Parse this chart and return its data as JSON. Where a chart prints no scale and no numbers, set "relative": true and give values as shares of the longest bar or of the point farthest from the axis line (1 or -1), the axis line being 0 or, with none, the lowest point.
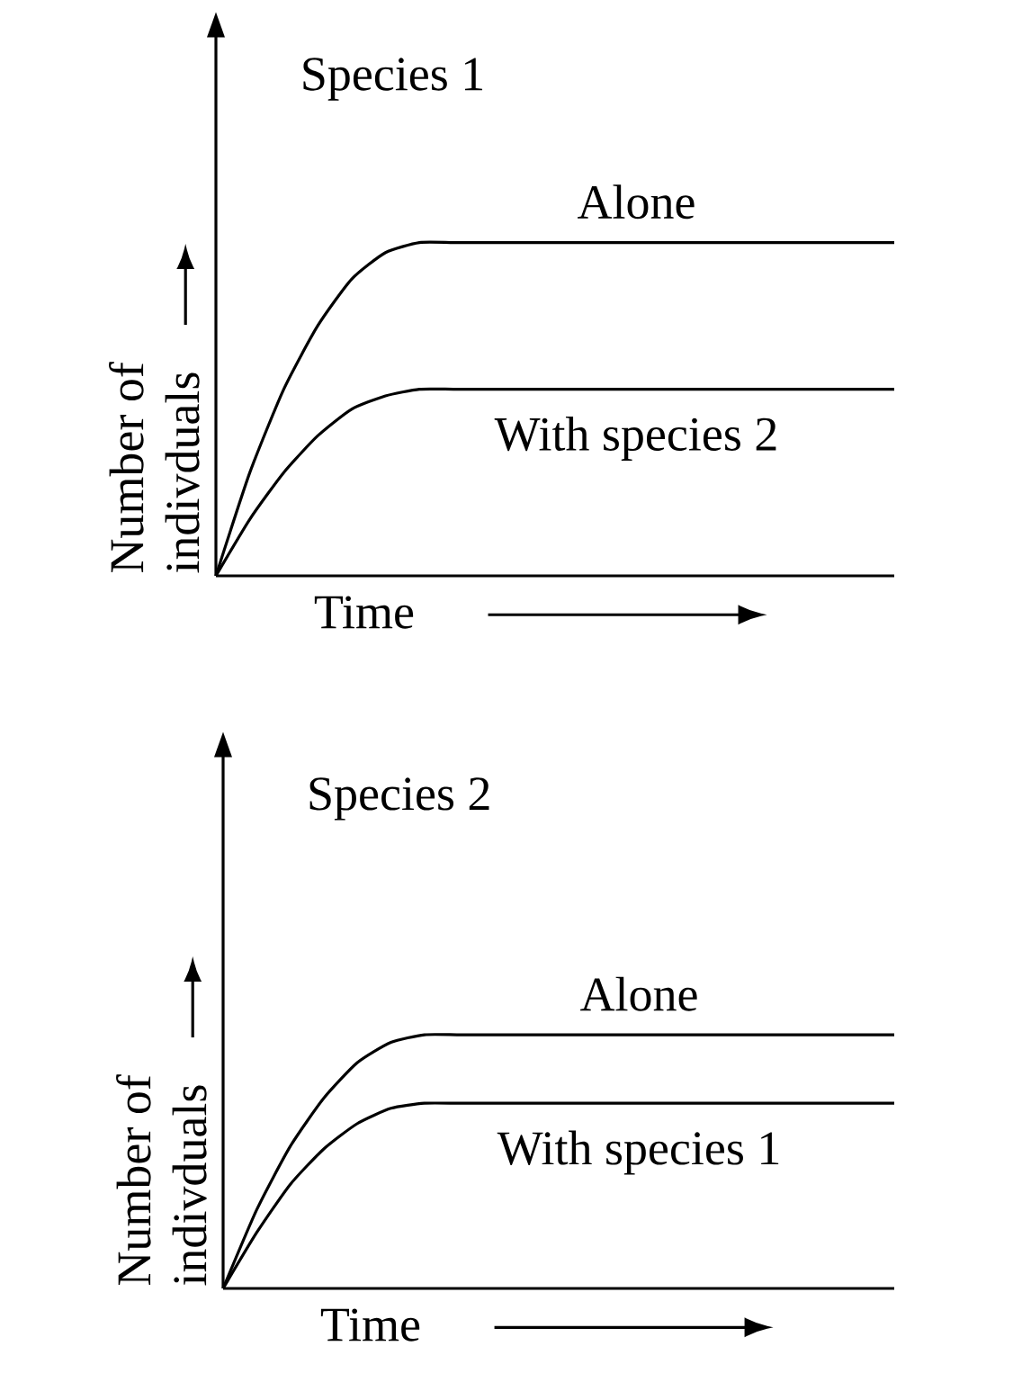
{
  "chart_data": [
    {
      "type": "line",
      "title": "Species 1",
      "xlabel": "Time",
      "ylabel": "Number of indivduals",
      "relative": true,
      "categories": [
        null,
        null,
        null,
        null,
        null,
        null,
        null,
        null,
        null,
        null,
        null,
        null,
        null,
        null,
        null,
        null,
        null,
        null,
        null,
        null,
        null
      ],
      "series": [
        {
          "name": "Alone",
          "color": "#000000",
          "values": [
            0,
            0.31,
            0.56,
            0.75,
            0.89,
            0.97,
            1,
            1,
            1,
            1,
            1,
            1,
            1,
            1,
            1,
            1,
            1,
            1,
            1,
            1,
            1
          ]
        },
        {
          "name": "With species 2",
          "color": "#000000",
          "values": [
            0,
            0.17,
            0.31,
            0.42,
            0.5,
            0.54,
            0.56,
            0.56,
            0.56,
            0.56,
            0.56,
            0.56,
            0.56,
            0.56,
            0.56,
            0.56,
            0.56,
            0.56,
            0.56,
            0.56,
            0.56
          ]
        }
      ]
    },
    {
      "type": "line",
      "title": "Species 2",
      "xlabel": "Time",
      "ylabel": "Number of indivduals",
      "relative": true,
      "categories": [
        null,
        null,
        null,
        null,
        null,
        null,
        null,
        null,
        null,
        null,
        null,
        null,
        null,
        null,
        null,
        null,
        null,
        null,
        null,
        null,
        null
      ],
      "series": [
        {
          "name": "Alone",
          "color": "#000000",
          "values": [
            0,
            0.31,
            0.56,
            0.75,
            0.89,
            0.97,
            1,
            1,
            1,
            1,
            1,
            1,
            1,
            1,
            1,
            1,
            1,
            1,
            1,
            1,
            1
          ]
        },
        {
          "name": "With species 1",
          "color": "#000000",
          "values": [
            0,
            0.22,
            0.41,
            0.55,
            0.65,
            0.71,
            0.73,
            0.73,
            0.73,
            0.73,
            0.73,
            0.73,
            0.73,
            0.73,
            0.73,
            0.73,
            0.73,
            0.73,
            0.73,
            0.73,
            0.73
          ]
        }
      ]
    }
  ]
}
